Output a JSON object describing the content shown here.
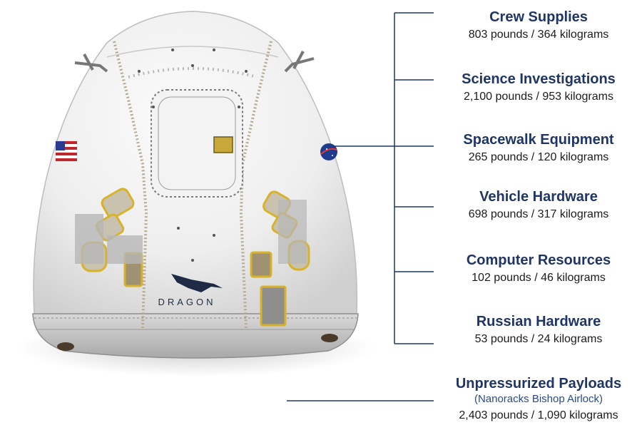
{
  "capsule": {
    "logo_text": "DRAGON",
    "accent_color": "#1f3566",
    "panel_highlight_color": "#d8b22a"
  },
  "categories": [
    {
      "title": "Crew Supplies",
      "mass": "803 pounds / 364 kilograms"
    },
    {
      "title": "Science Investigations",
      "mass": "2,100 pounds / 953 kilograms"
    },
    {
      "title": "Spacewalk Equipment",
      "mass": "265 pounds / 120 kilograms"
    },
    {
      "title": "Vehicle Hardware",
      "mass": "698 pounds / 317 kilograms"
    },
    {
      "title": "Computer Resources",
      "mass": "102 pounds / 46 kilograms"
    },
    {
      "title": "Russian Hardware",
      "mass": "53 pounds / 24 kilograms"
    },
    {
      "title": "Unpressurized Payloads",
      "subtitle": "(Nanoracks Bishop Airlock)",
      "mass": "2,403 pounds / 1,090 kilograms"
    }
  ]
}
